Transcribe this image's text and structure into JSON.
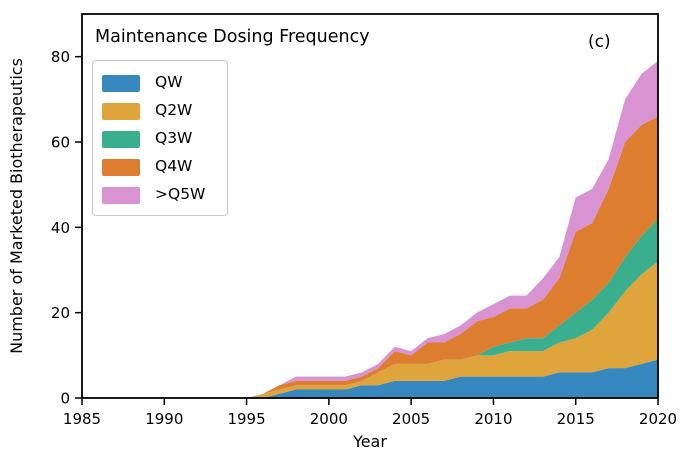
{
  "figure": {
    "title": "Maintenance Dosing Frequency",
    "panel_label": "(c)",
    "xlabel": "Year",
    "ylabel": "Number of Marketed Biotherapeutics"
  },
  "chart_data": {
    "type": "area",
    "stacked": true,
    "title": "Maintenance Dosing Frequency",
    "xlabel": "Year",
    "ylabel": "Number of Marketed Biotherapeutics",
    "xlim": [
      1985,
      2020
    ],
    "ylim": [
      0,
      90
    ],
    "xticks": [
      1985,
      1990,
      1995,
      2000,
      2005,
      2010,
      2015,
      2020
    ],
    "yticks": [
      0,
      20,
      40,
      60,
      80
    ],
    "grid": false,
    "legend_position": "upper-left",
    "x": [
      1985,
      1986,
      1987,
      1988,
      1989,
      1990,
      1991,
      1992,
      1993,
      1994,
      1995,
      1996,
      1997,
      1998,
      1999,
      2000,
      2001,
      2002,
      2003,
      2004,
      2005,
      2006,
      2007,
      2008,
      2009,
      2010,
      2011,
      2012,
      2013,
      2014,
      2015,
      2016,
      2017,
      2018,
      2019,
      2020
    ],
    "series": [
      {
        "name": "QW",
        "color": "#3688bf",
        "values": [
          0,
          0,
          0,
          0,
          0,
          0,
          0,
          0,
          0,
          0,
          0,
          0,
          1,
          2,
          2,
          2,
          2,
          3,
          3,
          4,
          4,
          4,
          4,
          5,
          5,
          5,
          5,
          5,
          5,
          6,
          6,
          6,
          7,
          7,
          8,
          9
        ]
      },
      {
        "name": "Q2W",
        "color": "#e0a43c",
        "values": [
          0,
          0,
          0,
          0,
          0,
          0,
          0,
          0,
          0,
          0,
          0,
          1,
          1,
          1,
          1,
          1,
          1,
          1,
          3,
          4,
          4,
          4,
          5,
          4,
          5,
          5,
          6,
          6,
          6,
          7,
          8,
          10,
          13,
          18,
          21,
          23
        ]
      },
      {
        "name": "Q3W",
        "color": "#39af8e",
        "values": [
          0,
          0,
          0,
          0,
          0,
          0,
          0,
          0,
          0,
          0,
          0,
          0,
          0,
          0,
          0,
          0,
          0,
          0,
          0,
          0,
          0,
          0,
          0,
          0,
          0,
          2,
          2,
          3,
          3,
          4,
          6,
          7,
          7,
          8,
          9,
          10
        ]
      },
      {
        "name": "Q4W",
        "color": "#dc7d30",
        "values": [
          0,
          0,
          0,
          0,
          0,
          0,
          0,
          0,
          0,
          0,
          0,
          0,
          1,
          1,
          1,
          1,
          1,
          1,
          1,
          3,
          2,
          5,
          4,
          6,
          8,
          7,
          8,
          7,
          9,
          11,
          19,
          18,
          22,
          27,
          26,
          24
        ]
      },
      {
        "name": ">Q5W",
        "color": "#d993d3",
        "values": [
          0,
          0,
          0,
          0,
          0,
          0,
          0,
          0,
          0,
          0,
          0,
          0,
          0,
          1,
          1,
          1,
          1,
          1,
          1,
          1,
          1,
          1,
          2,
          2,
          2,
          3,
          3,
          3,
          5,
          5,
          8,
          8,
          7,
          10,
          12,
          13
        ]
      }
    ]
  }
}
